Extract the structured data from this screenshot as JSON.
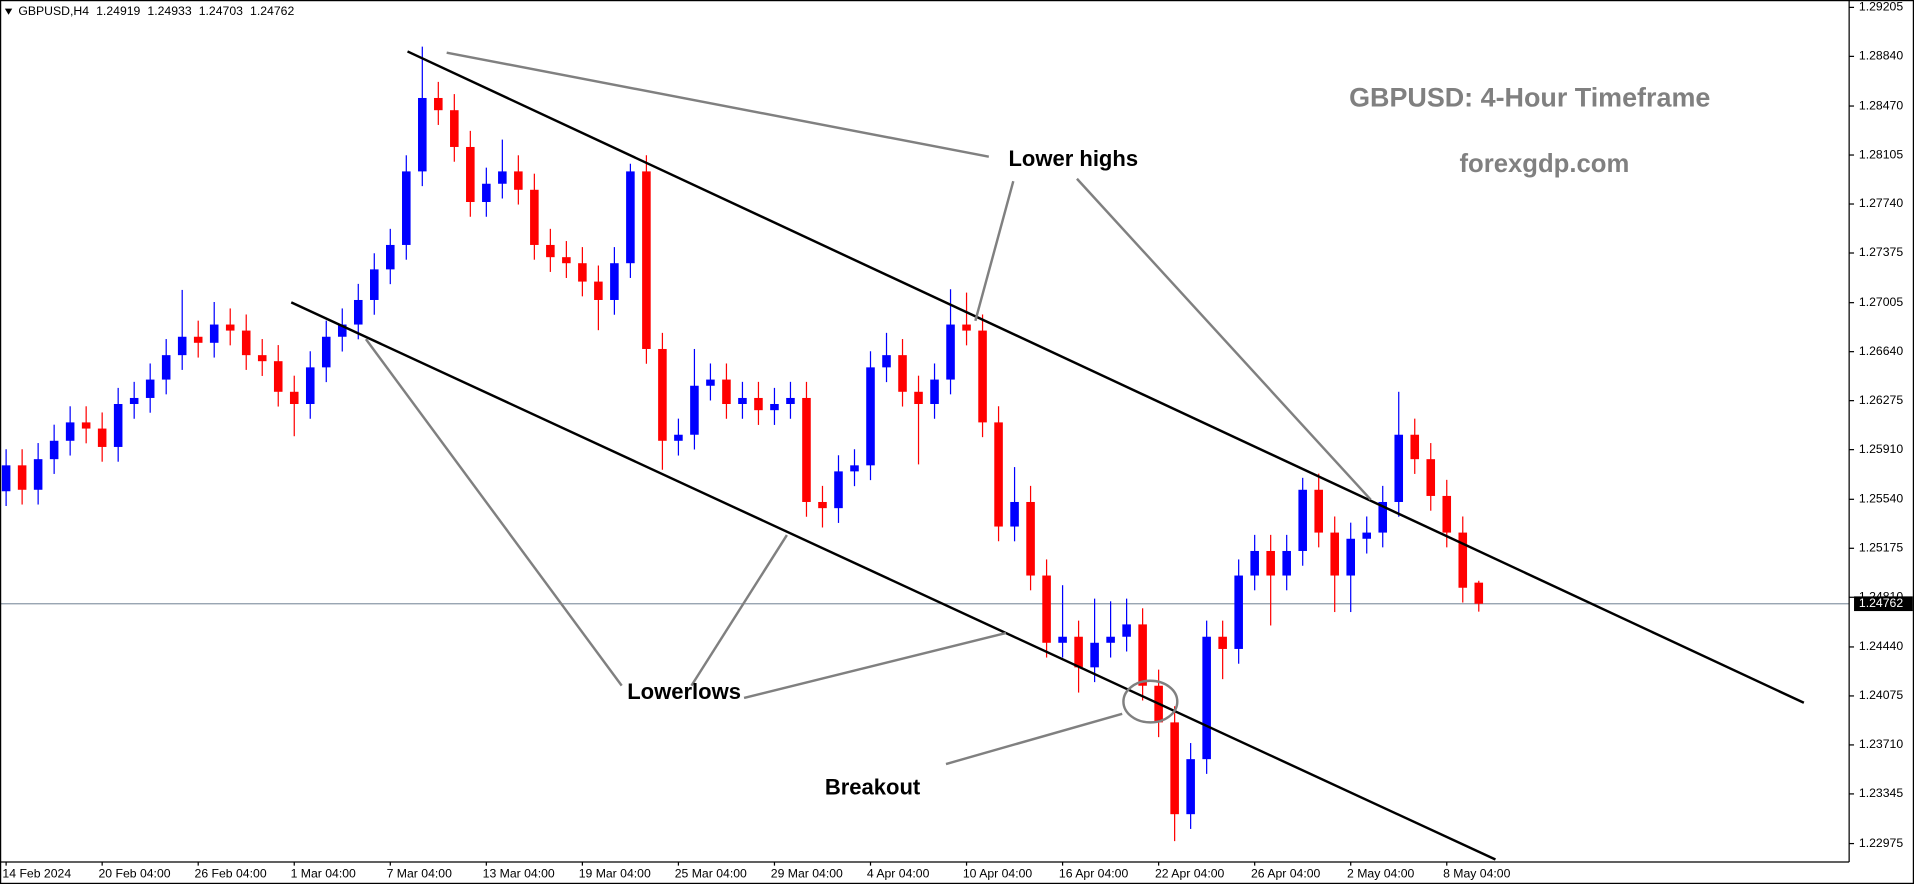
{
  "chart_data": {
    "type": "candlestick",
    "symbol": "GBPUSD,H4",
    "title": "GBPUSD: 4-Hour Timeframe",
    "subtitle": "forexgdp.com",
    "annotations": {
      "lower_highs": "Lower highs",
      "lower_lows": "Lowerlows",
      "breakout": "Breakout"
    },
    "up_color": "#0000ff",
    "down_color": "#ff0000",
    "price_line_color": "#8b9aa8",
    "categories": [
      "14 Feb 2024",
      null,
      null,
      null,
      null,
      null,
      "20 Feb 04:00",
      null,
      null,
      null,
      null,
      null,
      "26 Feb 04:00",
      null,
      null,
      null,
      null,
      null,
      "1 Mar 04:00",
      null,
      null,
      null,
      null,
      null,
      "7 Mar 04:00",
      null,
      null,
      null,
      null,
      null,
      "13 Mar 04:00",
      null,
      null,
      null,
      null,
      null,
      "19 Mar 04:00",
      null,
      null,
      null,
      null,
      null,
      "25 Mar 04:00",
      null,
      null,
      null,
      null,
      null,
      "29 Mar 04:00",
      null,
      null,
      null,
      null,
      null,
      "4 Apr 04:00",
      null,
      null,
      null,
      null,
      null,
      "10 Apr 04:00",
      null,
      null,
      null,
      null,
      null,
      "16 Apr 04:00",
      null,
      null,
      null,
      null,
      null,
      "22 Apr 04:00",
      null,
      null,
      null,
      null,
      null,
      "26 Apr 04:00",
      null,
      null,
      null,
      null,
      null,
      "2 May 04:00",
      null,
      null,
      null,
      null,
      null,
      "8 May 04:00",
      null,
      null
    ],
    "open": [
      1.256,
      1.25793,
      1.25611,
      1.25839,
      1.25976,
      1.26113,
      1.26067,
      1.2593,
      1.2625,
      1.26295,
      1.26432,
      1.26614,
      1.26751,
      1.26706,
      1.26842,
      1.26797,
      1.26614,
      1.26569,
      1.26341,
      1.2625,
      1.26523,
      1.26751,
      1.26842,
      1.27025,
      1.27253,
      1.27435,
      1.27983,
      1.2853,
      1.28439,
      1.28165,
      1.27755,
      1.27891,
      1.27983,
      1.27846,
      1.27435,
      1.27344,
      1.27299,
      1.27162,
      1.27025,
      1.27299,
      1.27983,
      1.2666,
      1.25976,
      1.26021,
      1.26386,
      1.26432,
      1.2625,
      1.26295,
      1.26204,
      1.2625,
      1.26295,
      1.2552,
      1.25474,
      1.25748,
      1.25793,
      1.26523,
      1.26614,
      1.26341,
      1.2625,
      1.26432,
      1.26842,
      1.26797,
      1.26113,
      1.25337,
      1.2552,
      1.24972,
      1.24471,
      1.24516,
      1.24288,
      1.24471,
      1.24516,
      1.24608,
      1.24151,
      1.23878,
      1.23194,
      1.23604,
      1.24516,
      1.24425,
      1.24972,
      1.25155,
      1.24972,
      1.25155,
      1.25611,
      1.25292,
      1.24972,
      1.25246,
      1.25292,
      1.2552,
      1.26021,
      1.25839,
      1.25565,
      1.25292,
      1.24919
    ],
    "high": [
      1.25913,
      1.25913,
      1.25959,
      1.26096,
      1.26233,
      1.26233,
      1.26187,
      1.2637,
      1.26415,
      1.26552,
      1.26734,
      1.271,
      1.26871,
      1.2701,
      1.26962,
      1.26917,
      1.26734,
      1.26689,
      1.26461,
      1.26643,
      1.26871,
      1.26962,
      1.27145,
      1.27373,
      1.27555,
      1.28103,
      1.28913,
      1.2865,
      1.28559,
      1.28285,
      1.28011,
      1.2822,
      1.28103,
      1.27966,
      1.27555,
      1.27464,
      1.27419,
      1.27282,
      1.27419,
      1.2804,
      1.28103,
      1.2678,
      1.26141,
      1.2666,
      1.26552,
      1.26552,
      1.26415,
      1.26415,
      1.2637,
      1.26415,
      1.26415,
      1.2564,
      1.25868,
      1.25913,
      1.26643,
      1.2678,
      1.26734,
      1.26461,
      1.26552,
      1.27105,
      1.2708,
      1.26917,
      1.26233,
      1.2578,
      1.2564,
      1.25092,
      1.249,
      1.24636,
      1.248,
      1.2478,
      1.248,
      1.24728,
      1.24271,
      1.23998,
      1.23724,
      1.24636,
      1.24636,
      1.25092,
      1.25275,
      1.25275,
      1.25275,
      1.257,
      1.25731,
      1.25412,
      1.25366,
      1.25412,
      1.2564,
      1.26341,
      1.26141,
      1.25959,
      1.25685,
      1.25412,
      1.24933
    ],
    "low": [
      1.2549,
      1.25501,
      1.25501,
      1.25729,
      1.25866,
      1.25957,
      1.2582,
      1.2582,
      1.2614,
      1.26185,
      1.26322,
      1.26504,
      1.26596,
      1.26596,
      1.26687,
      1.26504,
      1.26459,
      1.26231,
      1.2601,
      1.2614,
      1.26413,
      1.26641,
      1.26732,
      1.26915,
      1.27143,
      1.27325,
      1.27873,
      1.28329,
      1.28055,
      1.27645,
      1.27645,
      1.27781,
      1.27736,
      1.27325,
      1.27234,
      1.27189,
      1.27052,
      1.268,
      1.26915,
      1.27189,
      1.2655,
      1.2576,
      1.25866,
      1.25911,
      1.26276,
      1.2614,
      1.2614,
      1.26094,
      1.26094,
      1.2614,
      1.2541,
      1.2533,
      1.25364,
      1.25638,
      1.25683,
      1.26413,
      1.26231,
      1.258,
      1.2614,
      1.26322,
      1.26687,
      1.26003,
      1.25227,
      1.25227,
      1.24862,
      1.24361,
      1.24361,
      1.241,
      1.24178,
      1.24361,
      1.24406,
      1.24041,
      1.23768,
      1.22993,
      1.23084,
      1.23494,
      1.242,
      1.24315,
      1.24862,
      1.246,
      1.24862,
      1.25045,
      1.25182,
      1.247,
      1.247,
      1.25136,
      1.25182,
      1.2541,
      1.25729,
      1.25455,
      1.25182,
      1.24771,
      1.24703
    ],
    "close": [
      1.25793,
      1.25611,
      1.25839,
      1.25976,
      1.26113,
      1.26067,
      1.2593,
      1.2625,
      1.26295,
      1.26432,
      1.26614,
      1.26751,
      1.26706,
      1.26842,
      1.26797,
      1.26614,
      1.26569,
      1.26341,
      1.2625,
      1.26523,
      1.26751,
      1.26842,
      1.27025,
      1.27253,
      1.27435,
      1.27983,
      1.2853,
      1.28439,
      1.28165,
      1.27755,
      1.27891,
      1.27983,
      1.27846,
      1.27435,
      1.27344,
      1.27299,
      1.27162,
      1.27025,
      1.27299,
      1.27983,
      1.2666,
      1.25976,
      1.26021,
      1.26386,
      1.26432,
      1.2625,
      1.26295,
      1.26204,
      1.2625,
      1.26295,
      1.2552,
      1.25474,
      1.25748,
      1.25793,
      1.26523,
      1.26614,
      1.26341,
      1.2625,
      1.26432,
      1.26842,
      1.26797,
      1.26113,
      1.25337,
      1.2552,
      1.24972,
      1.24471,
      1.24516,
      1.24288,
      1.24471,
      1.24516,
      1.24608,
      1.24151,
      1.23878,
      1.23194,
      1.23604,
      1.24516,
      1.24425,
      1.24972,
      1.25155,
      1.24972,
      1.25155,
      1.25611,
      1.25292,
      1.24972,
      1.25246,
      1.25292,
      1.2552,
      1.26021,
      1.25839,
      1.25565,
      1.25292,
      1.24881,
      1.24762
    ],
    "ylim": [
      1.22838,
      1.2926
    ],
    "yticks": [
      1.29205,
      {
        "value": 1.2884,
        "label": "1.28840"
      },
      {
        "value": 1.2847,
        "label": "1.28470"
      },
      1.28105,
      {
        "value": 1.2774,
        "label": "1.27740"
      },
      1.27375,
      1.27005,
      {
        "value": 1.2664,
        "label": "1.26640"
      },
      1.26275,
      {
        "value": 1.2591,
        "label": "1.25910"
      },
      {
        "value": 1.2554,
        "label": "1.25540"
      },
      1.25175,
      {
        "value": 1.2481,
        "label": "1.24810"
      },
      {
        "value": 1.2444,
        "label": "1.24440"
      },
      1.24075,
      {
        "value": 1.2371,
        "label": "1.23710"
      },
      1.23345,
      1.22975
    ]
  }
}
